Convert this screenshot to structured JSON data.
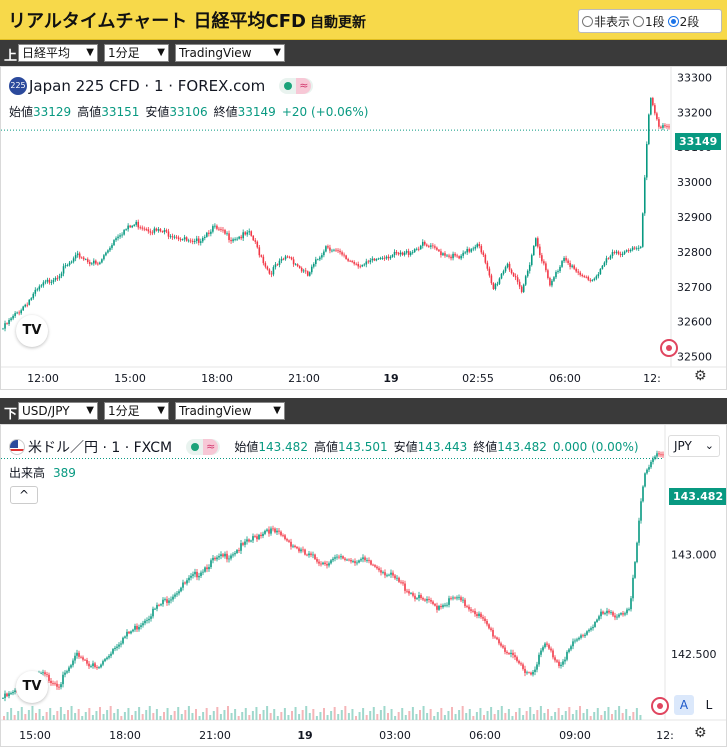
{
  "header": {
    "title": "リアルタイムチャート 日経平均CFD",
    "subtitle": "自動更新",
    "display_modes": [
      {
        "label": "非表示",
        "selected": false
      },
      {
        "label": "1段",
        "selected": false
      },
      {
        "label": "2段",
        "selected": true
      }
    ]
  },
  "upper": {
    "bar_label": "上",
    "symbol_select": "日経平均",
    "interval_select": "1分足",
    "source_select": "TradingView",
    "legend": {
      "symbol_badge": "225",
      "title": "Japan 225 CFD · 1 · FOREX.com",
      "open_label": "始値",
      "open": "33129",
      "high_label": "高値",
      "high": "33151",
      "low_label": "安値",
      "low": "33106",
      "close_label": "終値",
      "close": "33149",
      "change": "+20 (+0.06%)"
    },
    "last_price_tag": "33149",
    "tradingview_logo": "TV",
    "colors": {
      "up": "#089981",
      "down": "#f23645",
      "tag": "#089981"
    }
  },
  "lower": {
    "bar_label": "下",
    "symbol_select": "USD/JPY",
    "interval_select": "1分足",
    "source_select": "TradingView",
    "legend": {
      "title": "米ドル／円 · 1 · FXCM",
      "open_label": "始値",
      "open": "143.482",
      "high_label": "高値",
      "high": "143.501",
      "low_label": "安値",
      "low": "143.443",
      "close_label": "終値",
      "close": "143.482",
      "change": "0.000 (0.00%)",
      "volume_label": "出来高",
      "volume": "389"
    },
    "currency_button": "JPY",
    "last_price_tag": "143.482",
    "auto_button": "A",
    "log_button": "L",
    "collapse_button": "^",
    "tradingview_logo": "TV"
  },
  "chart_data": [
    {
      "type": "candlestick",
      "title": "Japan 225 CFD · 1 · FOREX.com",
      "x_ticks": [
        "12:00",
        "15:00",
        "18:00",
        "21:00",
        "19",
        "02:55",
        "06:00",
        "12:"
      ],
      "y_ticks": [
        33300,
        33200,
        33100,
        33000,
        32900,
        32800,
        32700,
        32600,
        32500
      ],
      "ylim": [
        32470,
        33330
      ],
      "last_price": 33149,
      "series": [
        {
          "name": "",
          "x": [
            0,
            0.8,
            1.6,
            2.4,
            3.2,
            4.0,
            4.8,
            5.6,
            6.4,
            7.2,
            8.0,
            8.8,
            9.6,
            10.4,
            11.2,
            12.0,
            12.8,
            13.6,
            14.4,
            15.2,
            16.0,
            16.8,
            17.6,
            18.4,
            19.2,
            20.0,
            20.6,
            21.2,
            21.8,
            22.4,
            23.0,
            23.6,
            24.2,
            24.8,
            25.2,
            25.6,
            26.0,
            26.4,
            26.8,
            27.2,
            27.6,
            28.0
          ],
          "y": [
            32580,
            32640,
            32700,
            32740,
            32790,
            32760,
            32850,
            32880,
            32860,
            32850,
            32820,
            32870,
            32840,
            32850,
            32740,
            32790,
            32730,
            32820,
            32780,
            32760,
            32790,
            32790,
            32820,
            32800,
            32780,
            32830,
            32690,
            32770,
            32680,
            32840,
            32700,
            32790,
            32730,
            32720,
            32760,
            32790,
            32800,
            32810,
            32800,
            33250,
            33160,
            33149
          ]
        }
      ],
      "xlabel": "",
      "ylabel": ""
    },
    {
      "type": "candlestick",
      "title": "米ドル／円 · 1 · FXCM",
      "x_ticks": [
        "15:00",
        "18:00",
        "21:00",
        "19",
        "03:00",
        "06:00",
        "09:00",
        "12:"
      ],
      "y_ticks": [
        143.0,
        142.5
      ],
      "y_tick_labels": [
        "143.000",
        "142.500"
      ],
      "ylim": [
        142.17,
        143.65
      ],
      "last_price": 143.482,
      "series": [
        {
          "name": "",
          "x": [
            0,
            0.8,
            1.6,
            2.4,
            3.2,
            4.0,
            4.8,
            5.6,
            6.4,
            7.2,
            8.0,
            8.8,
            9.6,
            10.4,
            11.2,
            12.0,
            12.8,
            13.6,
            14.4,
            15.2,
            16.0,
            16.8,
            17.6,
            18.4,
            19.2,
            20.0,
            20.8,
            21.6,
            22.4,
            23.0,
            23.6,
            24.2,
            24.8,
            25.4,
            26.0,
            26.6,
            27.2,
            27.6,
            28.0
          ],
          "y": [
            142.28,
            142.32,
            142.4,
            142.35,
            142.5,
            142.42,
            142.55,
            142.63,
            142.72,
            142.8,
            142.88,
            142.96,
            143.0,
            143.06,
            143.13,
            143.08,
            143.0,
            142.96,
            142.98,
            142.97,
            142.93,
            142.86,
            142.78,
            142.74,
            142.78,
            142.72,
            142.6,
            142.48,
            142.4,
            142.55,
            142.45,
            142.55,
            142.62,
            142.7,
            142.7,
            142.72,
            143.4,
            143.5,
            143.482
          ]
        }
      ],
      "volume_label": "出来高",
      "xlabel": "",
      "ylabel": ""
    }
  ]
}
